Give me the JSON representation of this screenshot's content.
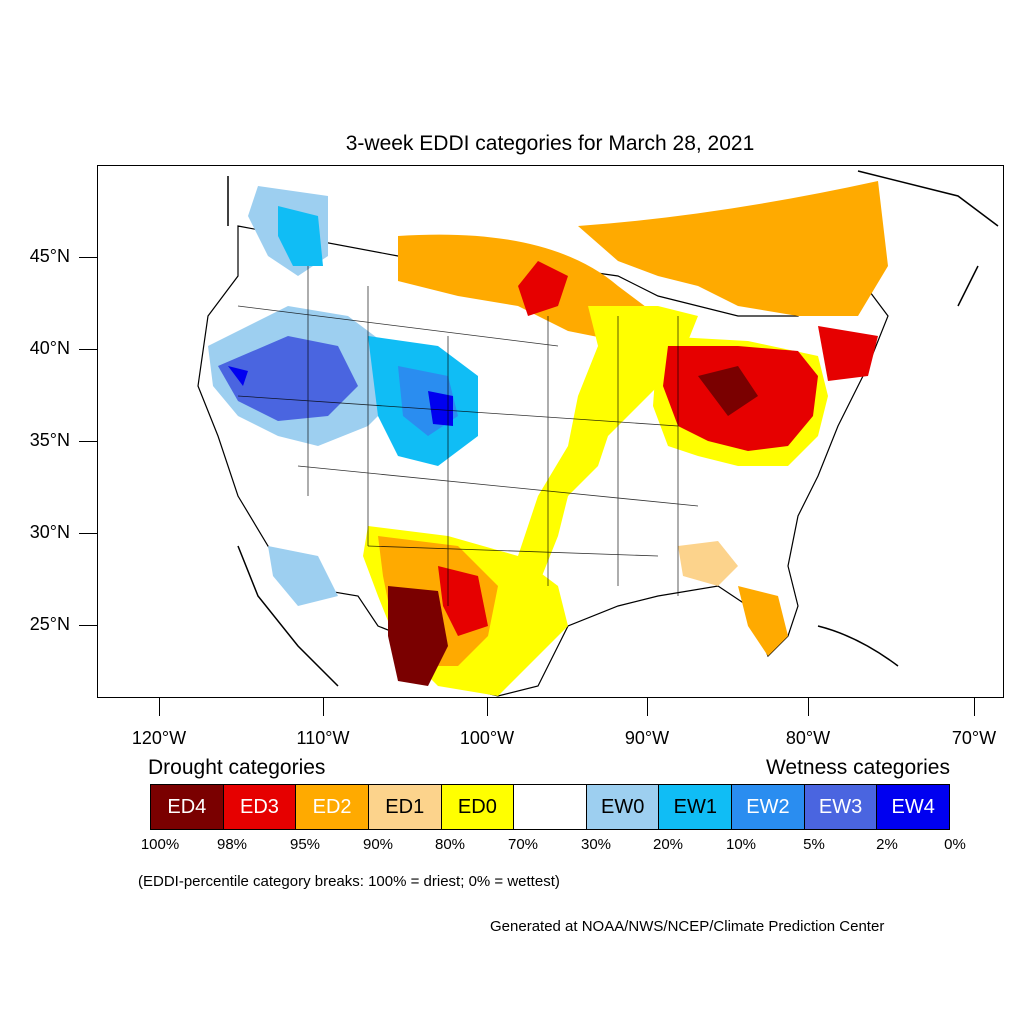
{
  "title": "3-week EDDI categories for March 28, 2021",
  "lat_labels": [
    "45°N",
    "40°N",
    "35°N",
    "30°N",
    "25°N"
  ],
  "lon_labels": [
    "120°W",
    "110°W",
    "100°W",
    "90°W",
    "80°W",
    "70°W"
  ],
  "legend": {
    "drought_title": "Drought categories",
    "wetness_title": "Wetness categories",
    "categories": [
      {
        "label": "ED4",
        "color": "#7a0000",
        "text_color": "#ffffff"
      },
      {
        "label": "ED3",
        "color": "#e60000",
        "text_color": "#ffffff"
      },
      {
        "label": "ED2",
        "color": "#ffaa00",
        "text_color": "#ffffff"
      },
      {
        "label": "ED1",
        "color": "#fcd38c",
        "text_color": "#000000"
      },
      {
        "label": "ED0",
        "color": "#ffff00",
        "text_color": "#000000"
      },
      {
        "label": "",
        "color": "#ffffff",
        "text_color": "#000000"
      },
      {
        "label": "EW0",
        "color": "#9dcff0",
        "text_color": "#000000"
      },
      {
        "label": "EW1",
        "color": "#10bdf5",
        "text_color": "#000000"
      },
      {
        "label": "EW2",
        "color": "#2a8df0",
        "text_color": "#ffffff"
      },
      {
        "label": "EW3",
        "color": "#4a65e0",
        "text_color": "#ffffff"
      },
      {
        "label": "EW4",
        "color": "#0000f0",
        "text_color": "#ffffff"
      }
    ],
    "percentiles": [
      "100%",
      "98%",
      "95%",
      "90%",
      "80%",
      "70%",
      "30%",
      "20%",
      "10%",
      "5%",
      "2%",
      "0%"
    ]
  },
  "note": "(EDDI-percentile category breaks: 100% = driest; 0% = wettest)",
  "credit": "Generated at NOAA/NWS/NCEP/Climate Prediction Center"
}
